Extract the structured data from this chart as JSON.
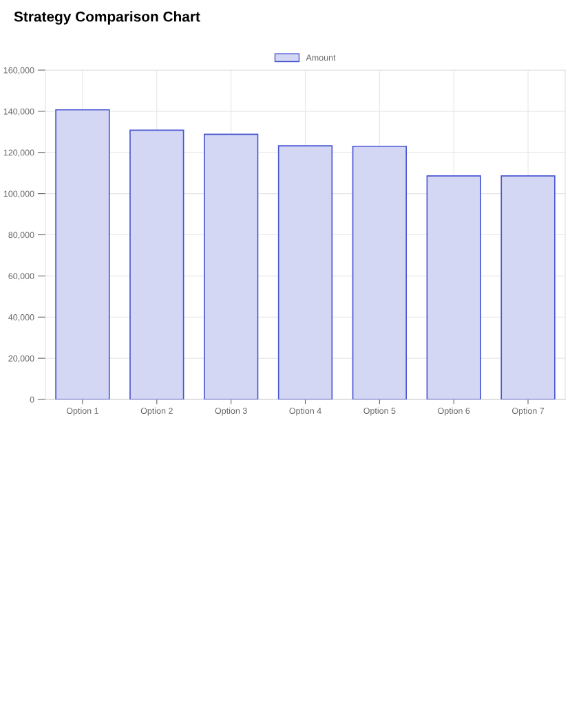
{
  "chart_data": {
    "type": "bar",
    "title": "Strategy Comparison Chart",
    "categories": [
      "Option 1",
      "Option 2",
      "Option 3",
      "Option 4",
      "Option 5",
      "Option 6",
      "Option 7"
    ],
    "series": [
      {
        "name": "Amount",
        "color": "#d4d7f4",
        "values": [
          140700,
          130800,
          128800,
          123200,
          123000,
          108600,
          108600
        ]
      }
    ],
    "ylim": [
      0,
      160000
    ],
    "yticks": [
      {
        "value": 0,
        "label": "0"
      },
      {
        "value": 20000,
        "label": "20,000"
      },
      {
        "value": 40000,
        "label": "40,000"
      },
      {
        "value": 60000,
        "label": "60,000"
      },
      {
        "value": 80000,
        "label": "80,000"
      },
      {
        "value": 100000,
        "label": "100,000"
      },
      {
        "value": 120000,
        "label": "120,000"
      },
      {
        "value": 140000,
        "label": "140,000"
      },
      {
        "value": 160000,
        "label": "160,000"
      }
    ],
    "grid": true,
    "legend": "top"
  }
}
